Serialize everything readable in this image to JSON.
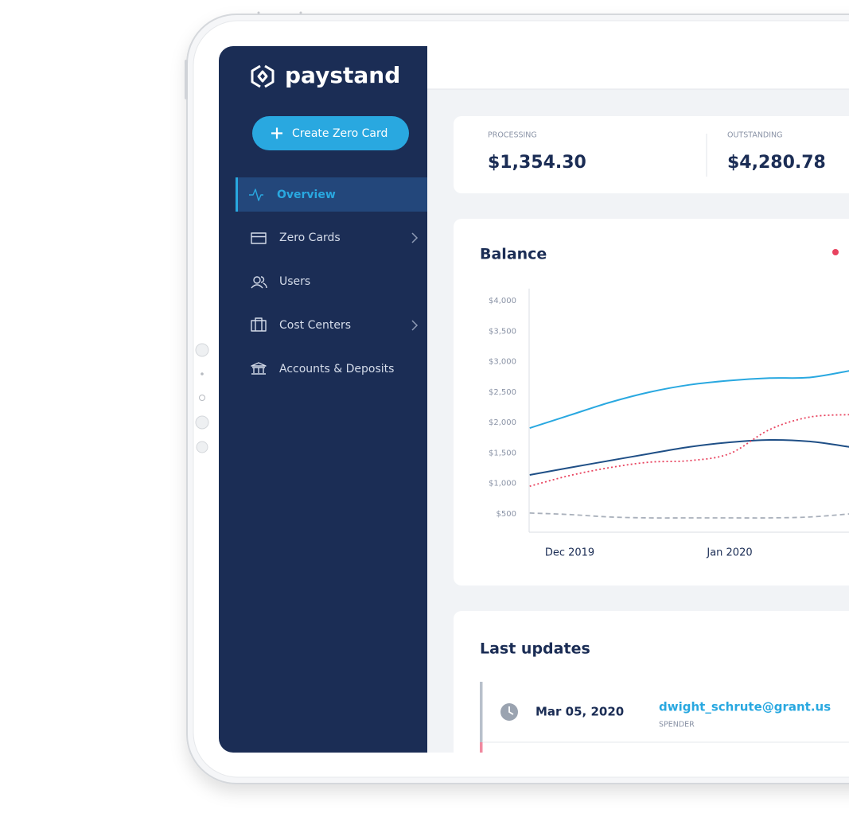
{
  "sidebar": {
    "logo": "paystand",
    "button": "Create Zero Card",
    "nav": [
      {
        "label": "Overview",
        "active": true,
        "expandable": false
      },
      {
        "label": "Zero Cards",
        "active": false,
        "expandable": true
      },
      {
        "label": "Users",
        "active": false,
        "expandable": false
      },
      {
        "label": "Cost Centers",
        "active": false,
        "expandable": true
      },
      {
        "label": "Accounts & Deposits",
        "active": false,
        "expandable": false
      }
    ]
  },
  "stats": [
    {
      "label": "PROCESSING",
      "value": "$1,354.30"
    },
    {
      "label": "OUTSTANDING",
      "value": "$4,280.78"
    }
  ],
  "balance": {
    "title": "Balance",
    "chart_data": {
      "type": "line",
      "categories": [
        null,
        "Dec 2019",
        null,
        null,
        null,
        "Jan 2020",
        null,
        null,
        null
      ],
      "ylim": [
        200,
        4200
      ],
      "yticks": [
        {
          "value": 500,
          "label": "$500"
        },
        {
          "value": 1000,
          "label": "$1,000"
        },
        {
          "value": 1500,
          "label": "$1,500"
        },
        {
          "value": 2000,
          "label": "$2,000"
        },
        {
          "value": 2500,
          "label": "$2,500"
        },
        {
          "value": 3000,
          "label": "$3,000"
        },
        {
          "value": 3500,
          "label": "$3,500"
        },
        {
          "value": 4000,
          "label": "$4,000"
        }
      ],
      "grid": false,
      "series": [
        {
          "color": "#29a8e0",
          "style": "solid",
          "values": [
            1910,
            2120,
            2330,
            2500,
            2620,
            2690,
            2730,
            2740,
            2850
          ]
        },
        {
          "color": "#1f4f86",
          "style": "solid",
          "values": [
            1140,
            1260,
            1375,
            1490,
            1600,
            1675,
            1715,
            1690,
            1600
          ]
        },
        {
          "color": "#e8435f",
          "style": "dotted",
          "values": [
            955,
            1130,
            1260,
            1350,
            1375,
            1490,
            1885,
            2090,
            2130
          ]
        },
        {
          "color": "#a9b0bb",
          "style": "dashed",
          "values": [
            515,
            490,
            450,
            435,
            435,
            435,
            435,
            450,
            500
          ]
        }
      ]
    }
  },
  "updates": {
    "title": "Last updates",
    "rows": [
      {
        "date": "Mar 05, 2020",
        "email": "dwight_schrute@grant.us",
        "role": "SPENDER"
      }
    ]
  }
}
